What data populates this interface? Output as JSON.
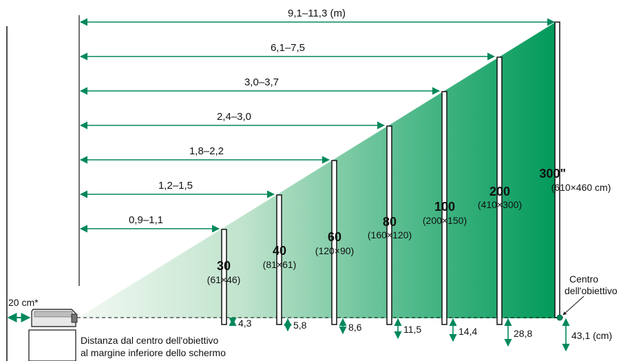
{
  "distances": [
    {
      "label": "9,1–11,3 (m)"
    },
    {
      "label": "6,1–7,5"
    },
    {
      "label": "3,0–3,7"
    },
    {
      "label": "2,4–3,0"
    },
    {
      "label": "1,8–2,2"
    },
    {
      "label": "1,2–1,5"
    },
    {
      "label": "0,9–1,1"
    }
  ],
  "screens": [
    {
      "size": "30",
      "dims": "(61×46)",
      "offset": "4,3"
    },
    {
      "size": "40",
      "dims": "(81×61)",
      "offset": "5,8"
    },
    {
      "size": "60",
      "dims": "(120×90)",
      "offset": "8,6"
    },
    {
      "size": "80",
      "dims": "(160×120)",
      "offset": "11,5"
    },
    {
      "size": "100",
      "dims": "(200×150)",
      "offset": "14,4"
    },
    {
      "size": "200",
      "dims": "(410×300)",
      "offset": "28,8"
    },
    {
      "size": "300\"",
      "dims": "(610×460 cm)",
      "offset": "43,1 (cm)"
    }
  ],
  "wall_gap": "20 cm*",
  "lens_center": {
    "line1": "Centro",
    "line2": "dell'obiettivo"
  },
  "caption": {
    "line1": "Distanza dal centro dell'obiettivo",
    "line2": "al margine inferiore dello schermo"
  },
  "colors": {
    "arrow": "#00885a",
    "beam_start": "#eef7ef",
    "beam_end": "#00995a"
  }
}
